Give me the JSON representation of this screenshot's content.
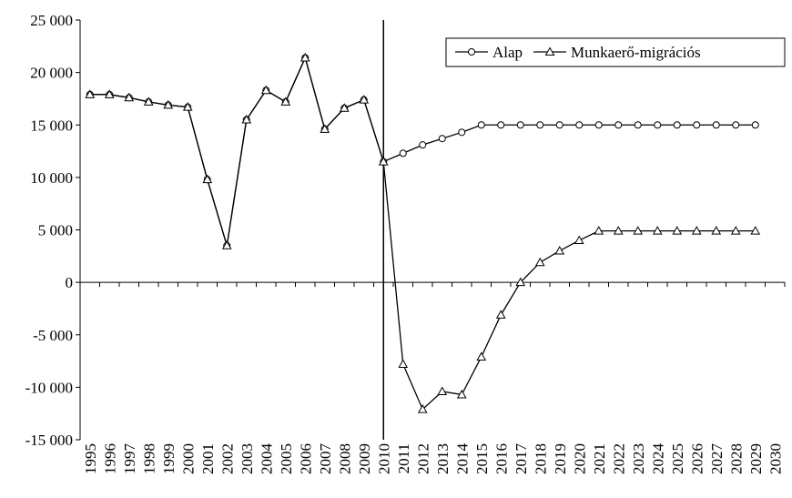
{
  "chart_data": {
    "type": "line",
    "categories": [
      "1995",
      "1996",
      "1997",
      "1998",
      "1999",
      "2000",
      "2001",
      "2002",
      "2003",
      "2004",
      "2005",
      "2006",
      "2007",
      "2008",
      "2009",
      "2010",
      "2011",
      "2012",
      "2013",
      "2014",
      "2015",
      "2016",
      "2017",
      "2018",
      "2019",
      "2020",
      "2021",
      "2022",
      "2023",
      "2024",
      "2025",
      "2026",
      "2027",
      "2028",
      "2029",
      "2030"
    ],
    "series": [
      {
        "name": "Alap",
        "color": "#000000",
        "marker": "circle",
        "values": [
          17900,
          17900,
          17600,
          17200,
          16900,
          16700,
          9800,
          3500,
          15500,
          18300,
          17200,
          21400,
          14600,
          16600,
          17400,
          11500,
          12300,
          13100,
          13700,
          14300,
          15000,
          15000,
          15000,
          15000,
          15000,
          15000,
          15000,
          15000,
          15000,
          15000,
          15000,
          15000,
          15000,
          15000,
          15000,
          null
        ]
      },
      {
        "name": "Munkaerő-migrációs",
        "color": "#000000",
        "marker": "triangle",
        "values": [
          17900,
          17900,
          17600,
          17200,
          16900,
          16700,
          9800,
          3500,
          15500,
          18300,
          17200,
          21400,
          14600,
          16600,
          17400,
          11500,
          -7800,
          -12100,
          -10400,
          -10700,
          -7100,
          -3100,
          0,
          1900,
          3000,
          4000,
          4900,
          4900,
          4900,
          4900,
          4900,
          4900,
          4900,
          4900,
          4900,
          null
        ]
      }
    ],
    "ylim": [
      -15000,
      25000
    ],
    "yticks": [
      {
        "value": -15000,
        "label": "-15 000"
      },
      {
        "value": -10000,
        "label": "-10 000"
      },
      {
        "value": -5000,
        "label": "-5 000"
      },
      0,
      {
        "value": 5000,
        "label": "5 000"
      },
      {
        "value": 10000,
        "label": "10 000"
      },
      {
        "value": 15000,
        "label": "15 000"
      },
      {
        "value": 20000,
        "label": "20 000"
      },
      {
        "value": 25000,
        "label": "25 000"
      }
    ],
    "grid": false,
    "vline_at": "2010",
    "legend": "top-right"
  }
}
